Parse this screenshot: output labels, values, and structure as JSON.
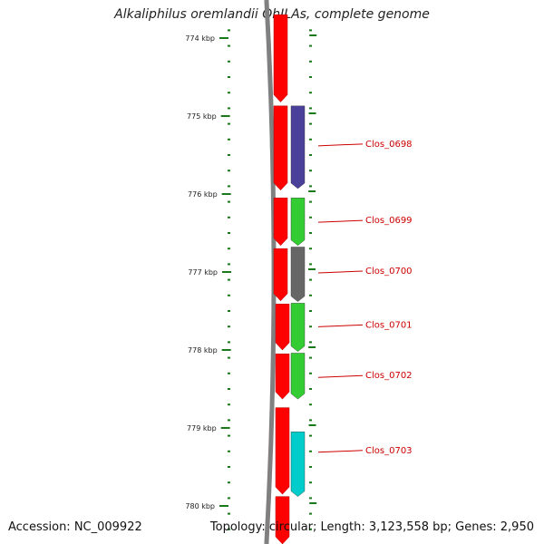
{
  "title": "Alkaliphilus oremlandii OhILAs, complete genome",
  "accession": "Accession: NC_009922",
  "summary": "Topology: circular; Length: 3,123,558 bp; Genes: 2,950",
  "colors": {
    "backbone": "#808080",
    "forward_strand": "#ff0000",
    "tick": "#1a7a1a",
    "label": "#cc0000",
    "purple": "#4a3f99",
    "green": "#33cc33",
    "gray": "#666666",
    "cyan": "#00cccc"
  },
  "ticks": [
    {
      "label": "774 kbp",
      "kbp": 774
    },
    {
      "label": "775 kbp",
      "kbp": 775
    },
    {
      "label": "776 kbp",
      "kbp": 776
    },
    {
      "label": "777 kbp",
      "kbp": 777
    },
    {
      "label": "778 kbp",
      "kbp": 778
    },
    {
      "label": "779 kbp",
      "kbp": 779
    },
    {
      "label": "780 kbp",
      "kbp": 780
    }
  ],
  "forward_features": [
    {
      "start": 773.7,
      "end": 774.82
    },
    {
      "start": 774.87,
      "end": 775.95
    },
    {
      "start": 776.05,
      "end": 776.66
    },
    {
      "start": 776.7,
      "end": 777.37
    },
    {
      "start": 777.41,
      "end": 778.0
    },
    {
      "start": 778.05,
      "end": 778.63
    },
    {
      "start": 778.74,
      "end": 779.85
    },
    {
      "start": 779.88,
      "end": 780.5
    }
  ],
  "genes": [
    {
      "label": "Clos_0698",
      "start": 774.87,
      "end": 775.93,
      "color": "purple",
      "label_kbp": 775.37
    },
    {
      "label": "Clos_0699",
      "start": 776.05,
      "end": 776.66,
      "color": "green",
      "label_kbp": 776.35
    },
    {
      "label": "Clos_0700",
      "start": 776.68,
      "end": 777.38,
      "color": "gray",
      "label_kbp": 777.0
    },
    {
      "label": "Clos_0701",
      "start": 777.4,
      "end": 778.02,
      "color": "green",
      "label_kbp": 777.69
    },
    {
      "label": "Clos_0702",
      "start": 778.04,
      "end": 778.63,
      "color": "green",
      "label_kbp": 778.34
    },
    {
      "label": "Clos_0703",
      "start": 779.05,
      "end": 779.88,
      "color": "cyan",
      "label_kbp": 779.3
    }
  ]
}
